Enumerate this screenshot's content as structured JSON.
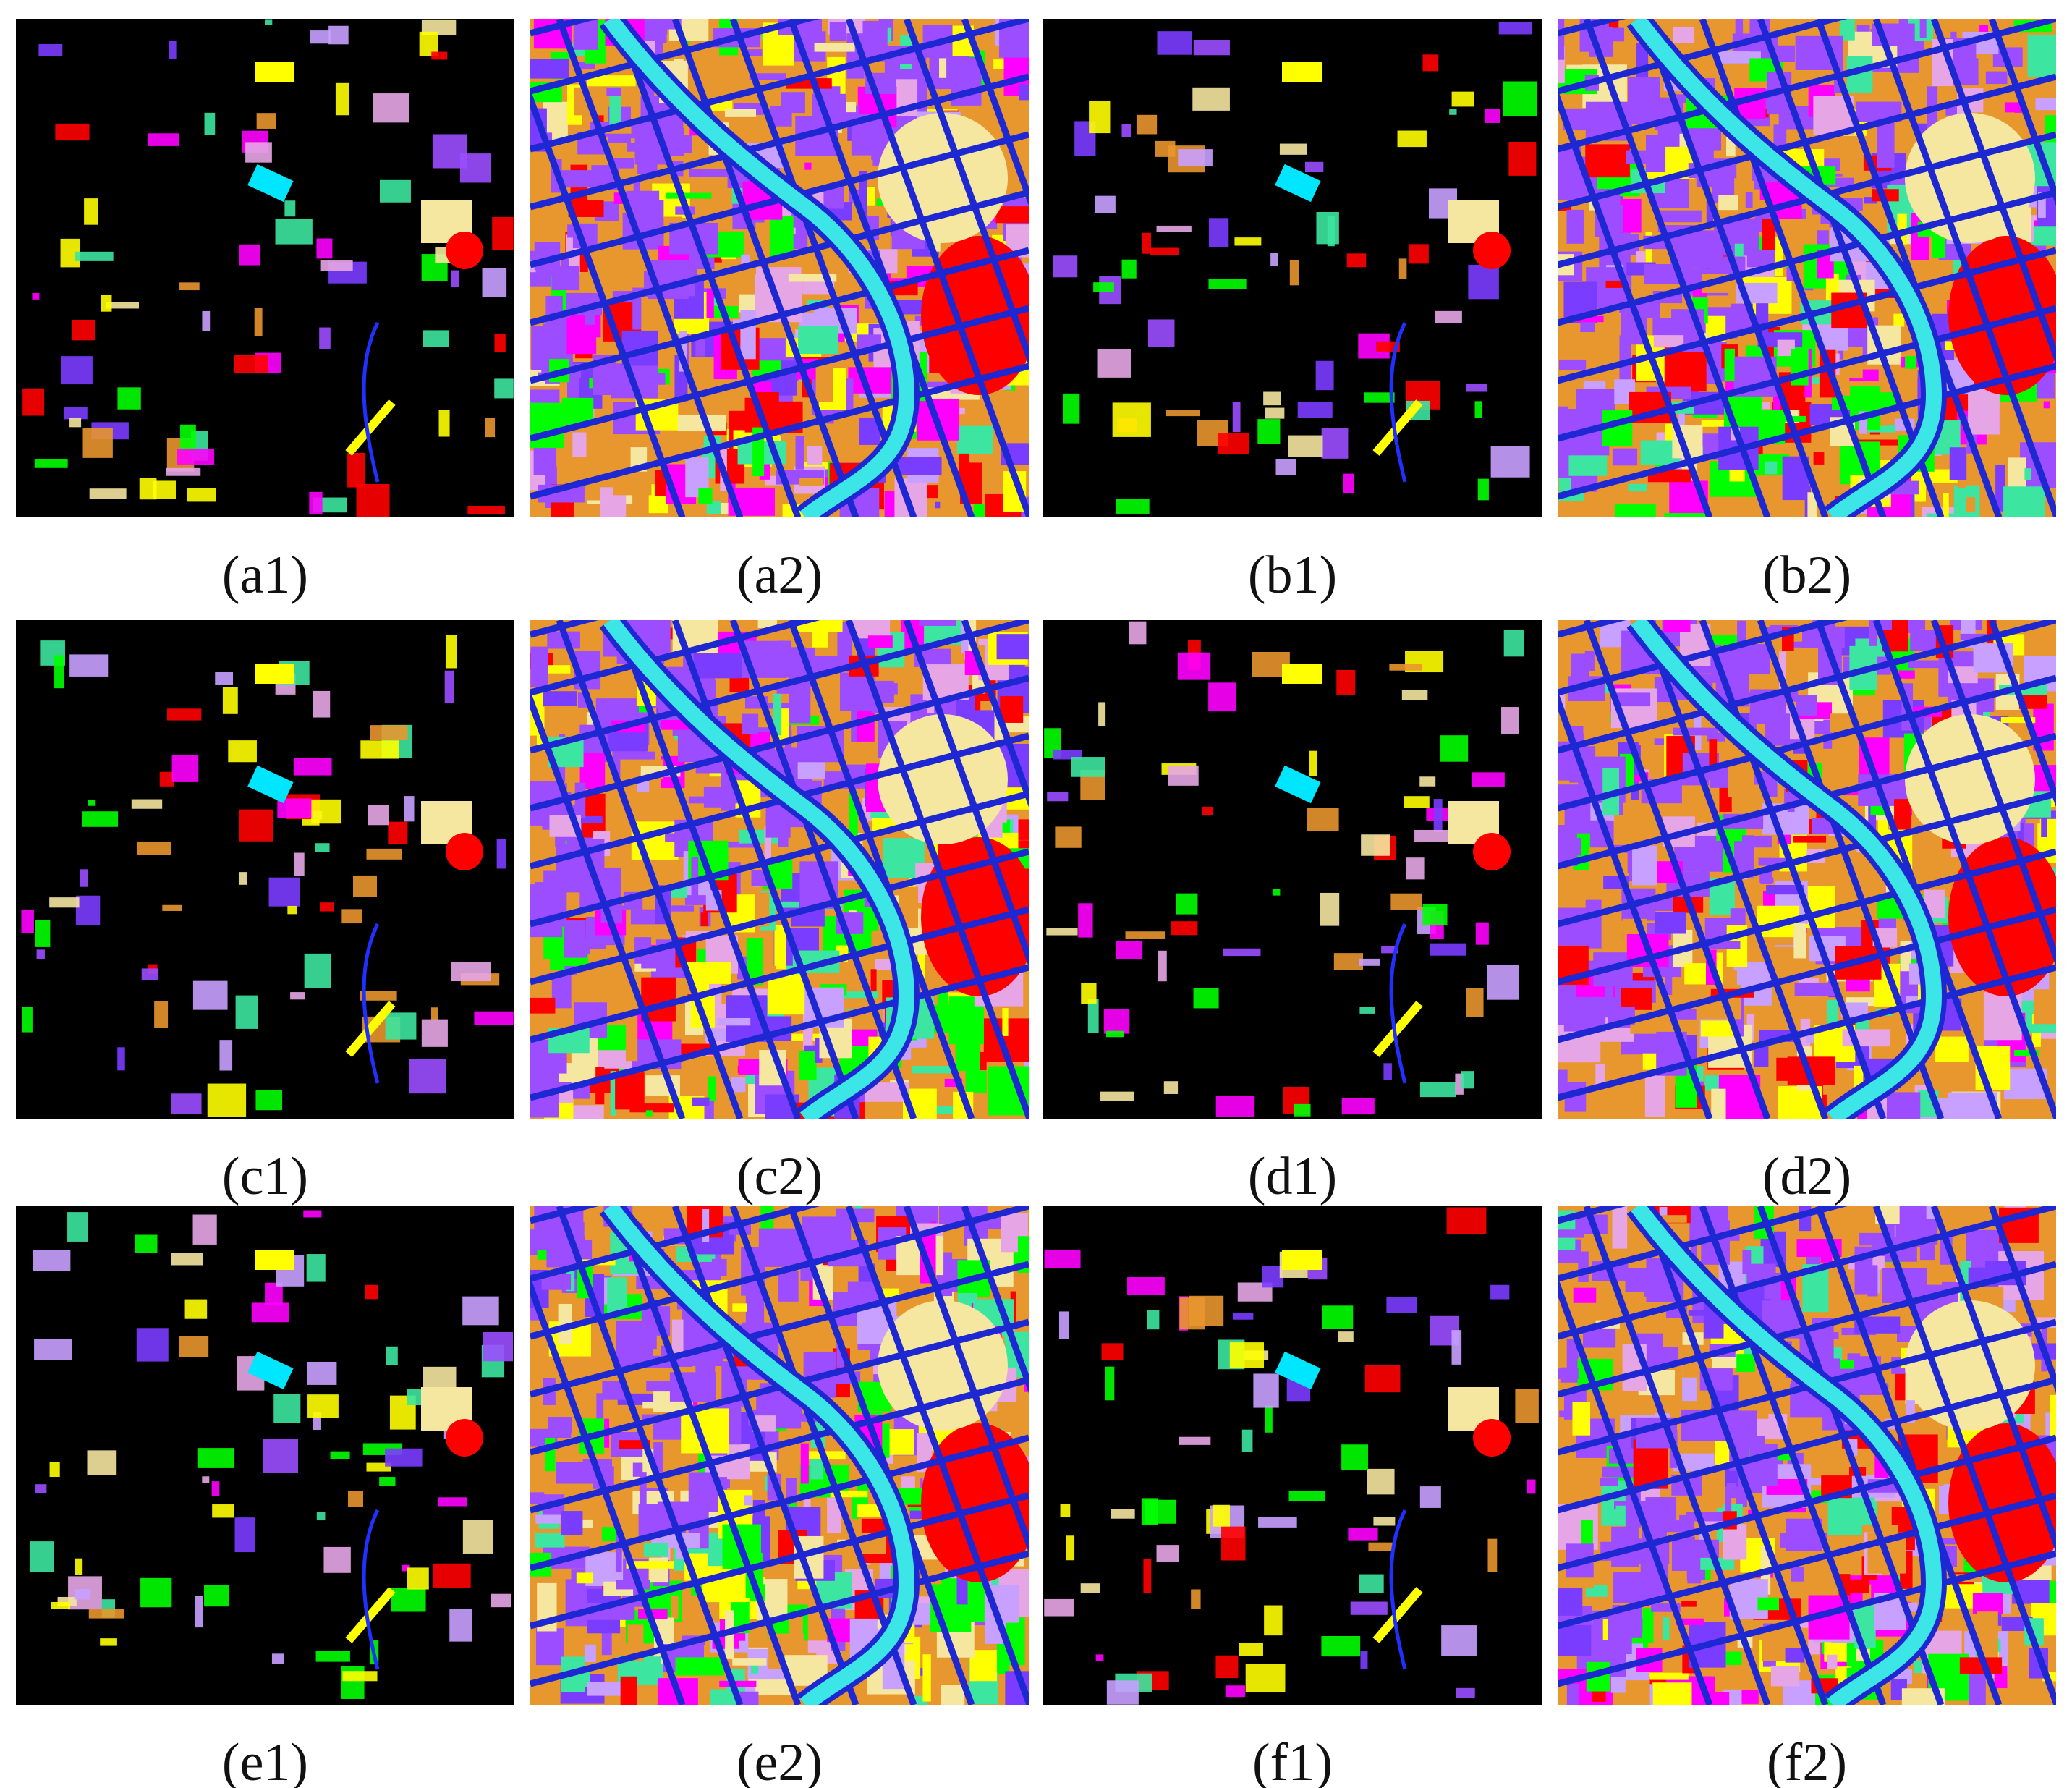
{
  "panels": [
    {
      "label": "(a1)"
    },
    {
      "label": "(a2)"
    },
    {
      "label": "(b1)"
    },
    {
      "label": "(b2)"
    },
    {
      "label": "(c1)"
    },
    {
      "label": "(c2)"
    },
    {
      "label": "(d1)"
    },
    {
      "label": "(d2)"
    },
    {
      "label": "(e1)"
    },
    {
      "label": "(e2)"
    },
    {
      "label": "(f1)"
    },
    {
      "label": "(f2)"
    }
  ]
}
